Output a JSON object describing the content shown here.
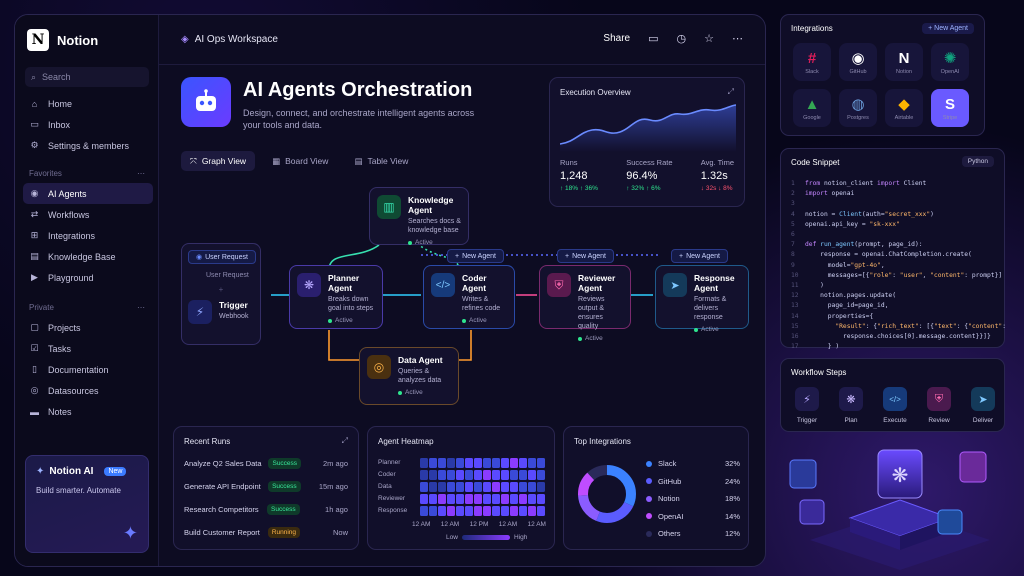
{
  "sidebar": {
    "brand": "Notion",
    "search_placeholder": "Search",
    "top_items": [
      {
        "label": "Home",
        "icon": "home-icon"
      },
      {
        "label": "Inbox",
        "icon": "inbox-icon"
      },
      {
        "label": "Settings & members",
        "icon": "gear-icon"
      }
    ],
    "favorites_heading": "Favorites",
    "favorites": [
      {
        "label": "AI Agents",
        "icon": "bot-icon",
        "active": true
      },
      {
        "label": "Workflows",
        "icon": "workflow-icon"
      },
      {
        "label": "Integrations",
        "icon": "integrations-icon"
      },
      {
        "label": "Knowledge Base",
        "icon": "book-icon"
      },
      {
        "label": "Playground",
        "icon": "play-icon"
      }
    ],
    "private_heading": "Private",
    "private": [
      {
        "label": "Projects",
        "icon": "folder-icon"
      },
      {
        "label": "Tasks",
        "icon": "check-icon"
      },
      {
        "label": "Documentation",
        "icon": "doc-icon"
      },
      {
        "label": "Datasources",
        "icon": "database-icon"
      },
      {
        "label": "Notes",
        "icon": "note-icon"
      }
    ],
    "promo": {
      "title": "Notion AI",
      "badge": "New",
      "text": "Build smarter. Automate"
    }
  },
  "header": {
    "workspace": "AI Ops Workspace",
    "share": "Share"
  },
  "hero": {
    "title": "AI Agents Orchestration",
    "subtitle": "Design, connect, and orchestrate intelligent agents across your tools and data."
  },
  "view_tabs": [
    "Graph View",
    "Board View",
    "Table View"
  ],
  "exec_overview": {
    "title": "Execution Overview",
    "stats": [
      {
        "label": "Runs",
        "value": "1,248",
        "delta": "↑ 18% ↑ 36%",
        "color": "green"
      },
      {
        "label": "Success Rate",
        "value": "96.4%",
        "delta": "↑ 32% ↑ 6%",
        "color": "green"
      },
      {
        "label": "Avg. Time",
        "value": "1.32s",
        "delta": "↓ 32s ↓ 8%",
        "color": "red"
      }
    ]
  },
  "graph": {
    "user_request": {
      "title": "User Request",
      "line": "User Request"
    },
    "trigger": {
      "name": "Trigger",
      "desc": "Webhook"
    },
    "knowledge": {
      "name": "Knowledge Agent",
      "desc": "Searches docs & knowledge base",
      "status": "Active"
    },
    "planner": {
      "name": "Planner Agent",
      "desc": "Breaks down goal into steps",
      "status": "Active"
    },
    "coder": {
      "name": "Coder Agent",
      "desc": "Writes & refines code",
      "status": "Active"
    },
    "reviewer": {
      "name": "Reviewer Agent",
      "desc": "Reviews output & ensures quality",
      "status": "Active"
    },
    "response": {
      "name": "Response Agent",
      "desc": "Formats & delivers response",
      "status": "Active"
    },
    "data": {
      "name": "Data Agent",
      "desc": "Queries & analyzes data",
      "status": "Active"
    },
    "pills": [
      "New Agent",
      "New Agent",
      "New Agent"
    ]
  },
  "recent_runs": {
    "title": "Recent Runs",
    "rows": [
      {
        "name": "Analyze Q2 Sales Data",
        "status": "Success",
        "time": "2m ago"
      },
      {
        "name": "Generate API Endpoint",
        "status": "Success",
        "time": "15m ago"
      },
      {
        "name": "Research Competitors",
        "status": "Success",
        "time": "1h ago"
      },
      {
        "name": "Build Customer Report",
        "status": "Running",
        "time": "Now"
      }
    ]
  },
  "heatmap": {
    "title": "Agent Heatmap",
    "rows": [
      "Planner",
      "Coder",
      "Data",
      "Reviewer",
      "Response"
    ],
    "x_labels": [
      "12 AM",
      "12 AM",
      "12 PM",
      "12 AM",
      "12 AM"
    ],
    "low": "Low",
    "high": "High"
  },
  "top_integrations": {
    "title": "Top Integrations",
    "items": [
      {
        "name": "Slack",
        "pct": "32%",
        "value": 32,
        "color": "#3b82ff"
      },
      {
        "name": "GitHub",
        "pct": "24%",
        "value": 24,
        "color": "#5b5cff"
      },
      {
        "name": "Notion",
        "pct": "18%",
        "value": 18,
        "color": "#8b5cff"
      },
      {
        "name": "OpenAI",
        "pct": "14%",
        "value": 14,
        "color": "#c04dff"
      },
      {
        "name": "Others",
        "pct": "12%",
        "value": 12,
        "color": "#2a2a5a"
      }
    ]
  },
  "integrations_panel": {
    "title": "Integrations",
    "new_agent": "+ New Agent",
    "apps": [
      "Slack",
      "GitHub",
      "Notion",
      "OpenAI",
      "Google",
      "Postgres",
      "Airtable",
      "Stripe"
    ]
  },
  "code_snippet": {
    "title": "Code Snippet",
    "lang": "Python"
  },
  "workflow_steps": {
    "title": "Workflow Steps",
    "steps": [
      "Trigger",
      "Plan",
      "Execute",
      "Review",
      "Deliver"
    ]
  }
}
